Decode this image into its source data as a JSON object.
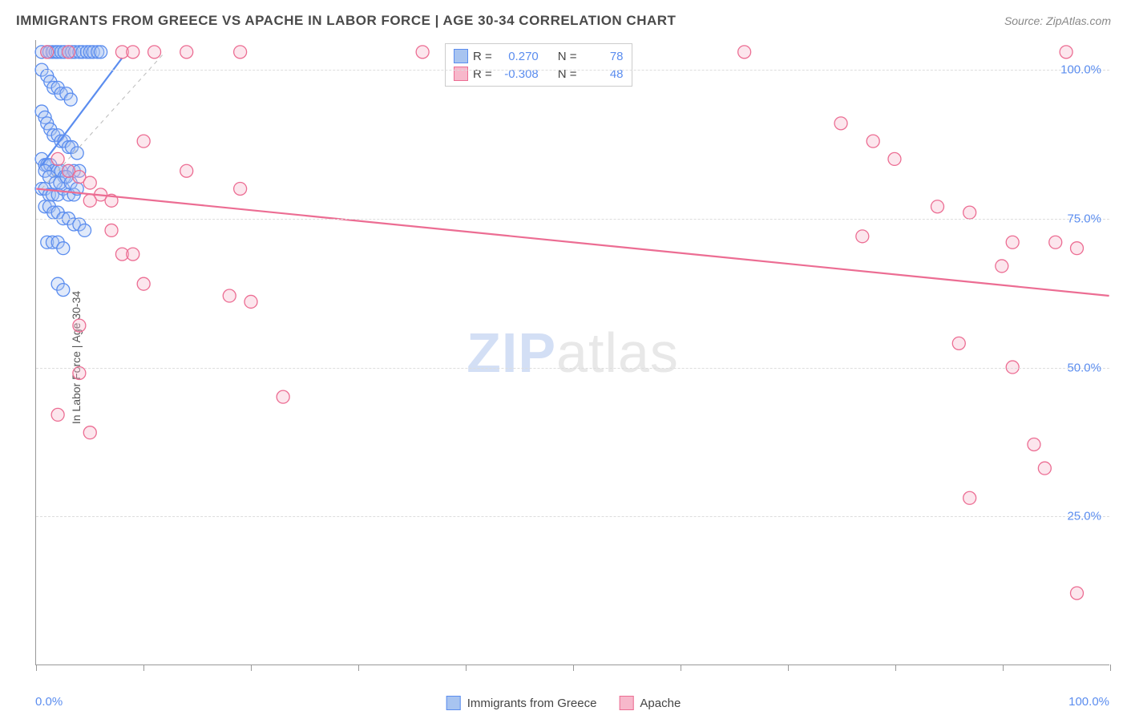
{
  "title": "IMMIGRANTS FROM GREECE VS APACHE IN LABOR FORCE | AGE 30-34 CORRELATION CHART",
  "source": "Source: ZipAtlas.com",
  "ylabel": "In Labor Force | Age 30-34",
  "watermark_zip": "ZIP",
  "watermark_atlas": "atlas",
  "chart": {
    "type": "scatter",
    "xlim": [
      0,
      100
    ],
    "ylim": [
      0,
      105
    ],
    "x_ticks": [
      0,
      10,
      20,
      30,
      40,
      50,
      60,
      70,
      80,
      90,
      100
    ],
    "y_gridlines": [
      25,
      50,
      75,
      100
    ],
    "y_tick_labels": [
      "25.0%",
      "50.0%",
      "75.0%",
      "100.0%"
    ],
    "x_axis_start_label": "0.0%",
    "x_axis_end_label": "100.0%",
    "background_color": "#ffffff",
    "grid_color": "#dddddd",
    "axis_color": "#999999",
    "marker_radius": 8,
    "marker_fill_opacity": 0.35,
    "marker_stroke_width": 1.3,
    "line_width": 2.2,
    "series": [
      {
        "name": "Immigrants from Greece",
        "color_stroke": "#5b8def",
        "color_fill": "#a8c4f0",
        "R": "0.270",
        "N": "78",
        "trend": {
          "x1": 0.5,
          "y1": 84,
          "x2": 8,
          "y2": 102
        },
        "trend_dash": {
          "x1": 0.5,
          "y1": 80,
          "x2": 12,
          "y2": 103
        },
        "points": [
          [
            0.5,
            103
          ],
          [
            1,
            103
          ],
          [
            1.2,
            103
          ],
          [
            1.5,
            103
          ],
          [
            1.8,
            103
          ],
          [
            2,
            103
          ],
          [
            2.3,
            103
          ],
          [
            2.6,
            103
          ],
          [
            3,
            103
          ],
          [
            3.3,
            103
          ],
          [
            3.6,
            103
          ],
          [
            4,
            103
          ],
          [
            4.3,
            103
          ],
          [
            4.7,
            103
          ],
          [
            5,
            103
          ],
          [
            5.3,
            103
          ],
          [
            5.7,
            103
          ],
          [
            6,
            103
          ],
          [
            0.5,
            100
          ],
          [
            1,
            99
          ],
          [
            1.3,
            98
          ],
          [
            1.6,
            97
          ],
          [
            2,
            97
          ],
          [
            2.3,
            96
          ],
          [
            2.8,
            96
          ],
          [
            3.2,
            95
          ],
          [
            0.5,
            93
          ],
          [
            0.8,
            92
          ],
          [
            1,
            91
          ],
          [
            1.3,
            90
          ],
          [
            1.6,
            89
          ],
          [
            2,
            89
          ],
          [
            2.3,
            88
          ],
          [
            2.6,
            88
          ],
          [
            3,
            87
          ],
          [
            3.3,
            87
          ],
          [
            3.8,
            86
          ],
          [
            0.5,
            85
          ],
          [
            0.8,
            84
          ],
          [
            1,
            84
          ],
          [
            1.3,
            84
          ],
          [
            1.6,
            83
          ],
          [
            2,
            83
          ],
          [
            2.3,
            83
          ],
          [
            2.6,
            82
          ],
          [
            3,
            83
          ],
          [
            3.5,
            83
          ],
          [
            4,
            83
          ],
          [
            0.5,
            80
          ],
          [
            0.8,
            80
          ],
          [
            1.2,
            79
          ],
          [
            1.5,
            79
          ],
          [
            2,
            79
          ],
          [
            2.5,
            80
          ],
          [
            3,
            79
          ],
          [
            3.5,
            79
          ],
          [
            0.8,
            77
          ],
          [
            1.2,
            77
          ],
          [
            1.6,
            76
          ],
          [
            2,
            76
          ],
          [
            2.5,
            75
          ],
          [
            3,
            75
          ],
          [
            3.5,
            74
          ],
          [
            4,
            74
          ],
          [
            4.5,
            73
          ],
          [
            1,
            71
          ],
          [
            1.5,
            71
          ],
          [
            2,
            71
          ],
          [
            2.5,
            70
          ],
          [
            2,
            64
          ],
          [
            2.5,
            63
          ],
          [
            0.8,
            83
          ],
          [
            1.2,
            82
          ],
          [
            1.8,
            81
          ],
          [
            2.2,
            81
          ],
          [
            2.8,
            82
          ],
          [
            3.2,
            81
          ],
          [
            3.8,
            80
          ]
        ]
      },
      {
        "name": "Apache",
        "color_stroke": "#ec6d93",
        "color_fill": "#f7b8cb",
        "R": "-0.308",
        "N": "48",
        "trend": {
          "x1": 0,
          "y1": 80,
          "x2": 100,
          "y2": 62
        },
        "points": [
          [
            1,
            103
          ],
          [
            3,
            103
          ],
          [
            8,
            103
          ],
          [
            9,
            103
          ],
          [
            11,
            103
          ],
          [
            14,
            103
          ],
          [
            19,
            103
          ],
          [
            36,
            103
          ],
          [
            39,
            103
          ],
          [
            66,
            103
          ],
          [
            96,
            103
          ],
          [
            2,
            85
          ],
          [
            3,
            83
          ],
          [
            4,
            82
          ],
          [
            5,
            81
          ],
          [
            5,
            78
          ],
          [
            6,
            79
          ],
          [
            7,
            78
          ],
          [
            7,
            73
          ],
          [
            8,
            69
          ],
          [
            9,
            69
          ],
          [
            10,
            88
          ],
          [
            14,
            83
          ],
          [
            19,
            80
          ],
          [
            4,
            57
          ],
          [
            10,
            64
          ],
          [
            4,
            49
          ],
          [
            18,
            62
          ],
          [
            20,
            61
          ],
          [
            23,
            45
          ],
          [
            2,
            42
          ],
          [
            5,
            39
          ],
          [
            75,
            91
          ],
          [
            78,
            88
          ],
          [
            80,
            85
          ],
          [
            77,
            72
          ],
          [
            84,
            77
          ],
          [
            87,
            76
          ],
          [
            91,
            71
          ],
          [
            90,
            67
          ],
          [
            95,
            71
          ],
          [
            97,
            70
          ],
          [
            86,
            54
          ],
          [
            91,
            50
          ],
          [
            87,
            28
          ],
          [
            93,
            37
          ],
          [
            94,
            33
          ],
          [
            97,
            12
          ]
        ]
      }
    ]
  },
  "bottom_legend": {
    "series1_label": "Immigrants from Greece",
    "series2_label": "Apache"
  },
  "stats_legend": {
    "r_label": "R =",
    "n_label": "N ="
  }
}
